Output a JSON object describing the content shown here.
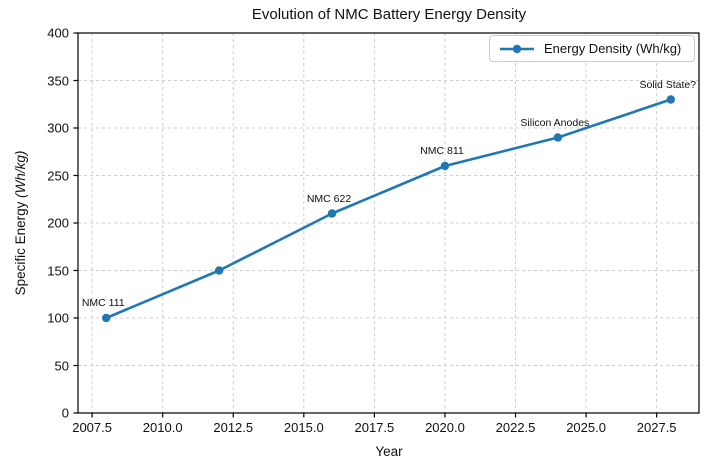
{
  "chart_data": {
    "type": "line",
    "title": "Evolution of NMC Battery Energy Density",
    "xlabel": "Year",
    "ylabel": "Specific Energy (Wh/kg)",
    "ylabel_main": "Specific Energy ",
    "ylabel_units": "(Wh/kg)",
    "xlim": [
      2007,
      2029
    ],
    "ylim": [
      0,
      400
    ],
    "xticks": [
      2007.5,
      2010.0,
      2012.5,
      2015.0,
      2017.5,
      2020.0,
      2022.5,
      2025.0,
      2027.5
    ],
    "xtick_labels": [
      "2007.5",
      "2010.0",
      "2012.5",
      "2015.0",
      "2017.5",
      "2020.0",
      "2022.5",
      "2025.0",
      "2027.5"
    ],
    "yticks": [
      0,
      50,
      100,
      150,
      200,
      250,
      300,
      350,
      400
    ],
    "ytick_labels": [
      "0",
      "50",
      "100",
      "150",
      "200",
      "250",
      "300",
      "350",
      "400"
    ],
    "grid": true,
    "legend_position": "upper right",
    "series": [
      {
        "name": "Energy Density (Wh/kg)",
        "x": [
          2008,
          2012,
          2016,
          2020,
          2024,
          2028
        ],
        "y": [
          100,
          150,
          210,
          260,
          290,
          330
        ],
        "color": "#1f77b4",
        "marker": "circle"
      }
    ],
    "annotations": [
      {
        "text": "NMC 111",
        "x": 2008,
        "y": 100
      },
      {
        "text": "NMC 622",
        "x": 2016,
        "y": 210
      },
      {
        "text": "NMC 811",
        "x": 2020,
        "y": 260
      },
      {
        "text": "Silicon Anodes",
        "x": 2024,
        "y": 290
      },
      {
        "text": "Solid State?",
        "x": 2028,
        "y": 330
      }
    ]
  },
  "colors": {
    "line": "#1f77b4",
    "grid": "#cccccc",
    "spine": "#000000",
    "tick": "#000000",
    "legend_border": "#cccccc"
  }
}
